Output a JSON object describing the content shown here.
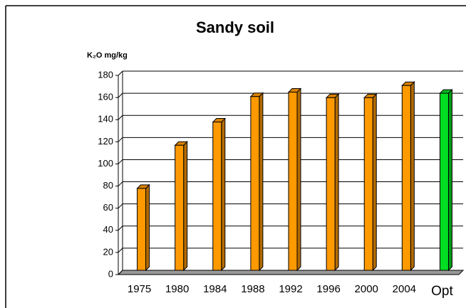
{
  "chart_data": {
    "type": "bar3d",
    "title": "Sandy soil",
    "y_label": "K₂O mg/kg",
    "categories": [
      "1975",
      "1980",
      "1984",
      "1988",
      "1992",
      "1996",
      "2000",
      "2004",
      "Opt"
    ],
    "values": [
      74,
      113,
      134,
      157,
      161,
      156,
      156,
      167,
      160
    ],
    "colors": [
      "#ff9900",
      "#ff9900",
      "#ff9900",
      "#ff9900",
      "#ff9900",
      "#ff9900",
      "#ff9900",
      "#ff9900",
      "#00dd22"
    ],
    "ylim": [
      0,
      180
    ],
    "yticks": [
      0,
      20,
      40,
      60,
      80,
      100,
      120,
      140,
      160,
      180
    ],
    "grid": true
  }
}
